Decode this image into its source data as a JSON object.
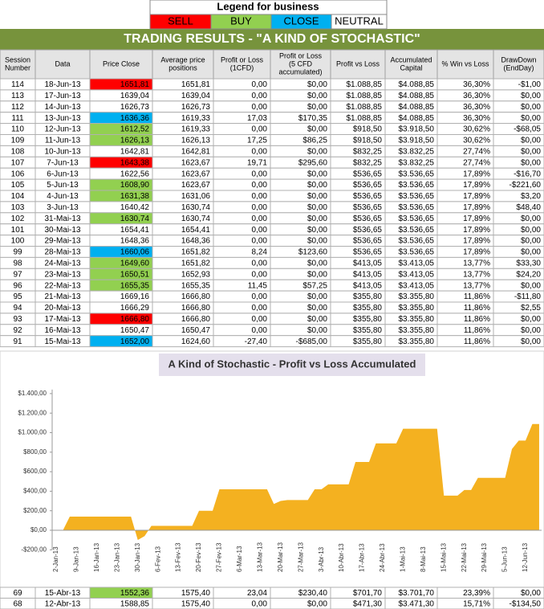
{
  "legend": {
    "title": "Legend for business",
    "items": [
      {
        "label": "SELL",
        "color": "#ff0000"
      },
      {
        "label": "BUY",
        "color": "#92d050"
      },
      {
        "label": "CLOSE",
        "color": "#00b0f0"
      },
      {
        "label": "NEUTRAL",
        "color": "#ffffff"
      }
    ]
  },
  "table": {
    "title": "TRADING RESULTS - \"A KIND OF STOCHASTIC\"",
    "columns": [
      [
        "Session",
        "Number"
      ],
      [
        "Data"
      ],
      [
        "Price Close"
      ],
      [
        "Average price",
        "positions"
      ],
      [
        "Profit or Loss",
        "(1CFD)"
      ],
      [
        "Profit or Loss",
        "(5 CFD",
        "accumulated)"
      ],
      [
        "Profit vs Loss"
      ],
      [
        "Accumulated",
        "Capital"
      ],
      [
        "% Win vs Loss"
      ],
      [
        "DrawDown",
        "(EndDay)"
      ]
    ],
    "rows": [
      {
        "cells": [
          "114",
          "18-Jun-13",
          "1651,81",
          "1651,81",
          "0,00",
          "$0,00",
          "$1.088,85",
          "$4.088,85",
          "36,30%",
          "-$1,00"
        ],
        "highlight": "#ff0000"
      },
      {
        "cells": [
          "113",
          "17-Jun-13",
          "1639,04",
          "1639,04",
          "0,00",
          "$0,00",
          "$1.088,85",
          "$4.088,85",
          "36,30%",
          "$0,00"
        ],
        "highlight": null
      },
      {
        "cells": [
          "112",
          "14-Jun-13",
          "1626,73",
          "1626,73",
          "0,00",
          "$0,00",
          "$1.088,85",
          "$4.088,85",
          "36,30%",
          "$0,00"
        ],
        "highlight": null
      },
      {
        "cells": [
          "111",
          "13-Jun-13",
          "1636,36",
          "1619,33",
          "17,03",
          "$170,35",
          "$1.088,85",
          "$4.088,85",
          "36,30%",
          "$0,00"
        ],
        "highlight": "#00b0f0"
      },
      {
        "cells": [
          "110",
          "12-Jun-13",
          "1612,52",
          "1619,33",
          "0,00",
          "$0,00",
          "$918,50",
          "$3.918,50",
          "30,62%",
          "-$68,05"
        ],
        "highlight": "#92d050"
      },
      {
        "cells": [
          "109",
          "11-Jun-13",
          "1626,13",
          "1626,13",
          "17,25",
          "$86,25",
          "$918,50",
          "$3.918,50",
          "30,62%",
          "$0,00"
        ],
        "highlight": "#92d050"
      },
      {
        "cells": [
          "108",
          "10-Jun-13",
          "1642,81",
          "1642,81",
          "0,00",
          "$0,00",
          "$832,25",
          "$3.832,25",
          "27,74%",
          "$0,00"
        ],
        "highlight": null
      },
      {
        "cells": [
          "107",
          "7-Jun-13",
          "1643,38",
          "1623,67",
          "19,71",
          "$295,60",
          "$832,25",
          "$3.832,25",
          "27,74%",
          "$0,00"
        ],
        "highlight": "#ff0000"
      },
      {
        "cells": [
          "106",
          "6-Jun-13",
          "1622,56",
          "1623,67",
          "0,00",
          "$0,00",
          "$536,65",
          "$3.536,65",
          "17,89%",
          "-$16,70"
        ],
        "highlight": null
      },
      {
        "cells": [
          "105",
          "5-Jun-13",
          "1608,90",
          "1623,67",
          "0,00",
          "$0,00",
          "$536,65",
          "$3.536,65",
          "17,89%",
          "-$221,60"
        ],
        "highlight": "#92d050"
      },
      {
        "cells": [
          "104",
          "4-Jun-13",
          "1631,38",
          "1631,06",
          "0,00",
          "$0,00",
          "$536,65",
          "$3.536,65",
          "17,89%",
          "$3,20"
        ],
        "highlight": "#92d050"
      },
      {
        "cells": [
          "103",
          "3-Jun-13",
          "1640,42",
          "1630,74",
          "0,00",
          "$0,00",
          "$536,65",
          "$3.536,65",
          "17,89%",
          "$48,40"
        ],
        "highlight": null
      },
      {
        "cells": [
          "102",
          "31-Mai-13",
          "1630,74",
          "1630,74",
          "0,00",
          "$0,00",
          "$536,65",
          "$3.536,65",
          "17,89%",
          "$0,00"
        ],
        "highlight": "#92d050"
      },
      {
        "cells": [
          "101",
          "30-Mai-13",
          "1654,41",
          "1654,41",
          "0,00",
          "$0,00",
          "$536,65",
          "$3.536,65",
          "17,89%",
          "$0,00"
        ],
        "highlight": null
      },
      {
        "cells": [
          "100",
          "29-Mai-13",
          "1648,36",
          "1648,36",
          "0,00",
          "$0,00",
          "$536,65",
          "$3.536,65",
          "17,89%",
          "$0,00"
        ],
        "highlight": null
      },
      {
        "cells": [
          "99",
          "28-Mai-13",
          "1660,06",
          "1651,82",
          "8,24",
          "$123,60",
          "$536,65",
          "$3.536,65",
          "17,89%",
          "$0,00"
        ],
        "highlight": "#00b0f0"
      },
      {
        "cells": [
          "98",
          "24-Mai-13",
          "1649,60",
          "1651,82",
          "0,00",
          "$0,00",
          "$413,05",
          "$3.413,05",
          "13,77%",
          "$33,30"
        ],
        "highlight": "#92d050"
      },
      {
        "cells": [
          "97",
          "23-Mai-13",
          "1650,51",
          "1652,93",
          "0,00",
          "$0,00",
          "$413,05",
          "$3.413,05",
          "13,77%",
          "$24,20"
        ],
        "highlight": "#92d050"
      },
      {
        "cells": [
          "96",
          "22-Mai-13",
          "1655,35",
          "1655,35",
          "11,45",
          "$57,25",
          "$413,05",
          "$3.413,05",
          "13,77%",
          "$0,00"
        ],
        "highlight": "#92d050"
      },
      {
        "cells": [
          "95",
          "21-Mai-13",
          "1669,16",
          "1666,80",
          "0,00",
          "$0,00",
          "$355,80",
          "$3.355,80",
          "11,86%",
          "-$11,80"
        ],
        "highlight": null
      },
      {
        "cells": [
          "94",
          "20-Mai-13",
          "1666,29",
          "1666,80",
          "0,00",
          "$0,00",
          "$355,80",
          "$3.355,80",
          "11,86%",
          "$2,55"
        ],
        "highlight": null
      },
      {
        "cells": [
          "93",
          "17-Mai-13",
          "1666,80",
          "1666,80",
          "0,00",
          "$0,00",
          "$355,80",
          "$3.355,80",
          "11,86%",
          "$0,00"
        ],
        "highlight": "#ff0000"
      },
      {
        "cells": [
          "92",
          "16-Mai-13",
          "1650,47",
          "1650,47",
          "0,00",
          "$0,00",
          "$355,80",
          "$3.355,80",
          "11,86%",
          "$0,00"
        ],
        "highlight": null
      },
      {
        "cells": [
          "91",
          "15-Mai-13",
          "1652,00",
          "1624,60",
          "-27,40",
          "-$685,00",
          "$355,80",
          "$3.355,80",
          "11,86%",
          "$0,00"
        ],
        "highlight": "#00b0f0"
      }
    ],
    "more_rows": [
      {
        "cells": [
          "69",
          "15-Abr-13",
          "1552,36",
          "1575,40",
          "23,04",
          "$230,40",
          "$701,70",
          "$3.701,70",
          "23,39%",
          "$0,00"
        ],
        "highlight": "#92d050"
      },
      {
        "cells": [
          "68",
          "12-Abr-13",
          "1588,85",
          "1575,40",
          "0,00",
          "$0,00",
          "$471,30",
          "$3.471,30",
          "15,71%",
          "-$134,50"
        ],
        "highlight": null
      }
    ]
  },
  "chart_data": {
    "type": "area",
    "title": "A Kind of Stochastic - Profit vs Loss Accumulated",
    "color": "#f4b120",
    "categories": [
      "2-Jan-13",
      null,
      null,
      "9-Jan-13",
      null,
      null,
      "16-Jan-13",
      null,
      null,
      "23-Jan-13",
      null,
      null,
      "30-Jan-13",
      null,
      null,
      "6-Fev-13",
      null,
      null,
      "13-Fev-13",
      null,
      null,
      "20-Fev-13",
      null,
      null,
      "27-Fev-13",
      null,
      null,
      "6-Mar-13",
      null,
      null,
      "13-Mar-13",
      null,
      null,
      "20-Mar-13",
      null,
      null,
      "27-Mar-13",
      null,
      null,
      "3-Abr-13",
      null,
      null,
      "10-Abr-13",
      null,
      null,
      "17-Abr-13",
      null,
      null,
      "24-Abr-13",
      null,
      null,
      "1-Mai-13",
      null,
      null,
      "8-Mai-13",
      null,
      null,
      "15-Mai-13",
      null,
      null,
      "22-Mai-13",
      null,
      null,
      "29-Mai-13",
      null,
      null,
      "5-Jun-13",
      null,
      null,
      "12-Jun-13",
      null,
      null
    ],
    "values": [
      0,
      0,
      140,
      140,
      140,
      140,
      140,
      140,
      140,
      140,
      140,
      140,
      -100,
      -60,
      45,
      45,
      45,
      45,
      45,
      45,
      45,
      200,
      200,
      200,
      420,
      420,
      420,
      420,
      420,
      420,
      420,
      420,
      270,
      300,
      310,
      310,
      310,
      310,
      420,
      420,
      470,
      470,
      470,
      470,
      700,
      700,
      700,
      890,
      890,
      890,
      890,
      1040,
      1040,
      1040,
      1040,
      1040,
      1040,
      355,
      355,
      355,
      413,
      413,
      536.65,
      536.65,
      536.65,
      536.65,
      536.65,
      832.25,
      918.5,
      918.5,
      1088.85,
      1088.85
    ],
    "ylim": [
      -200,
      1400
    ],
    "yticks": [
      {
        "value": -200,
        "label": "-$200,00"
      },
      {
        "value": 0,
        "label": "$0,00"
      },
      {
        "value": 200,
        "label": "$200,00"
      },
      {
        "value": 400,
        "label": "$400,00"
      },
      {
        "value": 600,
        "label": "$600,00"
      },
      {
        "value": 800,
        "label": "$800,00"
      },
      {
        "value": 1000,
        "label": "$1.000,00"
      },
      {
        "value": 1200,
        "label": "$1.200,00"
      },
      {
        "value": 1400,
        "label": "$1.400,00"
      }
    ]
  }
}
